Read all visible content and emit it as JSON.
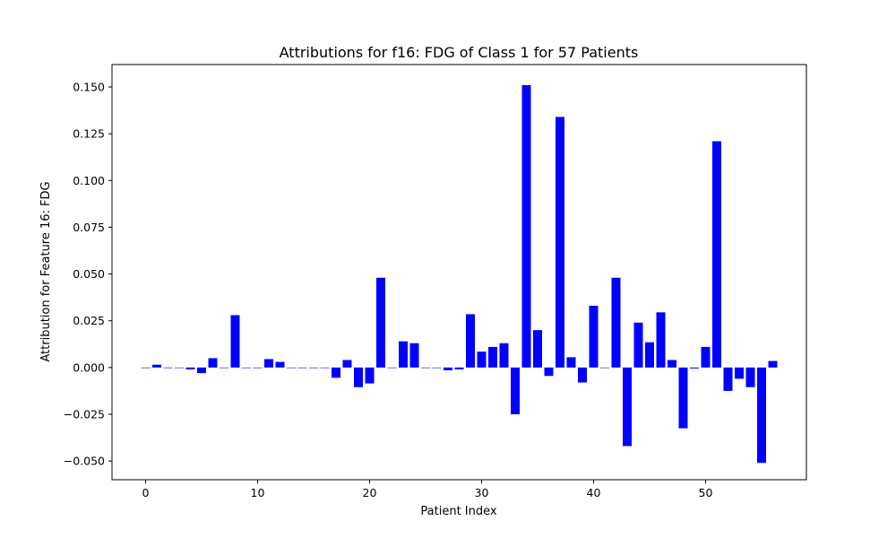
{
  "chart_data": {
    "type": "bar",
    "title": "Attributions for f16: FDG of Class 1 for 57 Patients",
    "xlabel": "Patient Index",
    "ylabel": "Attribution for Feature 16: FDG",
    "xlim": [
      -3,
      59
    ],
    "ylim": [
      -0.06,
      0.162
    ],
    "bar_color": "#0000ff",
    "grid": false,
    "x_ticks": [
      0,
      10,
      20,
      30,
      40,
      50
    ],
    "y_ticks": [
      {
        "value": -0.05,
        "label": "−0.050"
      },
      {
        "value": -0.025,
        "label": "−0.025"
      },
      {
        "value": 0.0,
        "label": "0.000"
      },
      {
        "value": 0.025,
        "label": "0.025"
      },
      {
        "value": 0.05,
        "label": "0.050"
      },
      {
        "value": 0.075,
        "label": "0.075"
      },
      {
        "value": 0.1,
        "label": "0.100"
      },
      {
        "value": 0.125,
        "label": "0.125"
      },
      {
        "value": 0.15,
        "label": "0.150"
      }
    ],
    "x": [
      0,
      1,
      2,
      3,
      4,
      5,
      6,
      7,
      8,
      9,
      10,
      11,
      12,
      13,
      14,
      15,
      16,
      17,
      18,
      19,
      20,
      21,
      22,
      23,
      24,
      25,
      26,
      27,
      28,
      29,
      30,
      31,
      32,
      33,
      34,
      35,
      36,
      37,
      38,
      39,
      40,
      41,
      42,
      43,
      44,
      45,
      46,
      47,
      48,
      49,
      50,
      51,
      52,
      53,
      54,
      55,
      56
    ],
    "values": [
      0.0,
      0.0015,
      0.0,
      0.0,
      -0.001,
      -0.003,
      0.005,
      0.0,
      0.028,
      0.0,
      0.0,
      0.0045,
      0.003,
      0.0,
      0.0,
      0.0,
      0.0,
      -0.0055,
      0.004,
      -0.0105,
      -0.0085,
      0.048,
      0.0,
      0.014,
      0.013,
      0.0,
      0.0,
      -0.0015,
      -0.001,
      0.0285,
      0.0085,
      0.011,
      0.013,
      -0.025,
      0.151,
      0.02,
      -0.0045,
      0.134,
      0.0055,
      -0.008,
      0.033,
      0.0,
      0.048,
      -0.042,
      0.024,
      0.0135,
      0.0295,
      0.004,
      -0.0325,
      -0.0005,
      0.011,
      0.121,
      -0.0125,
      -0.006,
      -0.0105,
      -0.051,
      0.0035
    ]
  }
}
